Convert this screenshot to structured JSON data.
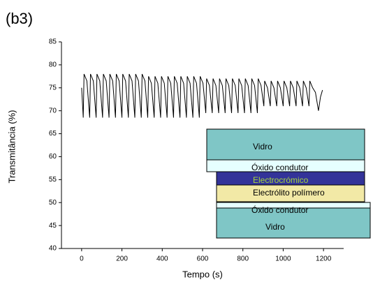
{
  "chart_data": {
    "type": "line",
    "title": "(b3)",
    "x_label": "Tempo (s)",
    "y_label": "Transmitância (%)",
    "xlim": [
      -100,
      1300
    ],
    "ylim": [
      40,
      85
    ],
    "xticks": [
      0,
      200,
      400,
      600,
      800,
      1000,
      1200
    ],
    "yticks": [
      40,
      45,
      50,
      55,
      60,
      65,
      70,
      75,
      80,
      85
    ],
    "color": "#000000",
    "x": [
      0,
      8,
      12,
      26,
      40,
      44,
      58,
      72,
      76,
      90,
      104,
      108,
      122,
      136,
      140,
      154,
      168,
      172,
      186,
      200,
      204,
      218,
      232,
      236,
      250,
      264,
      268,
      282,
      296,
      300,
      314,
      328,
      332,
      346,
      360,
      364,
      378,
      392,
      396,
      410,
      424,
      428,
      442,
      456,
      460,
      474,
      488,
      492,
      506,
      520,
      524,
      538,
      552,
      556,
      570,
      584,
      588,
      602,
      616,
      620,
      634,
      648,
      652,
      666,
      680,
      684,
      698,
      712,
      716,
      730,
      744,
      748,
      762,
      776,
      780,
      794,
      808,
      812,
      826,
      840,
      844,
      858,
      872,
      876,
      890,
      904,
      908,
      922,
      936,
      940,
      954,
      968,
      972,
      986,
      1000,
      1004,
      1018,
      1032,
      1036,
      1050,
      1064,
      1068,
      1082,
      1096,
      1100,
      1114,
      1128,
      1132,
      1146,
      1160,
      1175,
      1185,
      1195
    ],
    "values": [
      75,
      68.5,
      78,
      76.5,
      68.5,
      78,
      76.5,
      68.5,
      78,
      76.5,
      68.5,
      78,
      76.5,
      68.5,
      78,
      76.5,
      68.5,
      78,
      76.5,
      68.5,
      78,
      76.5,
      68.5,
      78,
      76.5,
      68.5,
      78,
      76.5,
      68.5,
      78,
      76.5,
      68.5,
      77.5,
      76,
      68.5,
      77.5,
      76,
      68.5,
      77.5,
      76,
      68.5,
      77.5,
      76,
      68.5,
      77.5,
      76,
      68.5,
      77.5,
      76,
      68.5,
      77.5,
      76,
      68.5,
      77.5,
      76,
      68.5,
      77.5,
      76,
      69.5,
      77,
      75.5,
      69.5,
      77,
      75.5,
      69.5,
      77,
      75.5,
      69.5,
      77,
      75.5,
      69.5,
      77,
      75.5,
      69.5,
      77,
      75.5,
      69.5,
      77,
      75.5,
      69.5,
      77,
      75.5,
      69.5,
      77,
      75.5,
      71,
      76.5,
      75,
      71,
      76.5,
      75,
      71,
      76.5,
      75,
      71,
      76.5,
      75,
      71,
      76.5,
      75,
      71,
      76.5,
      75,
      71,
      76.5,
      75,
      71,
      76.5,
      75,
      74,
      70,
      73,
      74.5
    ]
  },
  "layer_diagram": {
    "layers": [
      "Vidro",
      "Óxido condutor",
      "Electrocrómico",
      "Electrólito polímero",
      "Óxido condutor",
      "Vidro"
    ]
  }
}
